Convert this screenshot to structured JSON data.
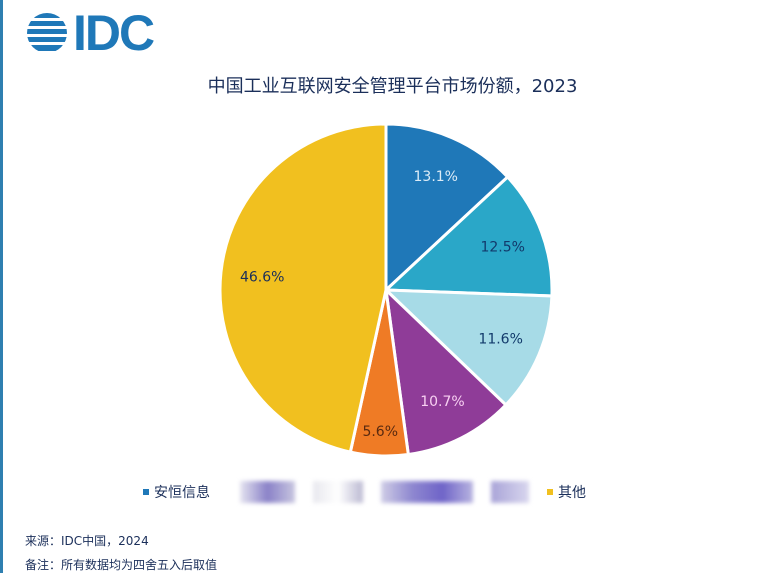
{
  "logo": {
    "text": "IDC"
  },
  "chart_data": {
    "type": "pie",
    "title": "中国工业互联网安全管理平台市场份额，2023",
    "start": "top",
    "direction": "clockwise",
    "slices": [
      {
        "name": "安恒信息",
        "value": 13.1,
        "label": "13.1%",
        "color": "#1f78b8",
        "label_color": "#dcecf7"
      },
      {
        "name": "",
        "value": 12.5,
        "label": "12.5%",
        "color": "#2aa7c8",
        "label_color": "#123a6b"
      },
      {
        "name": "",
        "value": 11.6,
        "label": "11.6%",
        "color": "#a7dbe7",
        "label_color": "#123a6b"
      },
      {
        "name": "",
        "value": 10.7,
        "label": "10.7%",
        "color": "#8f3c98",
        "label_color": "#f8d0f2"
      },
      {
        "name": "",
        "value": 5.6,
        "label": "5.6%",
        "color": "#ef7b25",
        "label_color": "#5a2a10"
      },
      {
        "name": "其他",
        "value": 46.6,
        "label": "46.6%",
        "color": "#f1c01f",
        "label_color": "#1b2f5a"
      }
    ],
    "legend": {
      "placement": "bottom",
      "visible_labels": [
        "安恒信息",
        "其他"
      ],
      "redacted_count": 4
    }
  },
  "footer": {
    "source": "来源：IDC中国，2024",
    "note": "备注：所有数据均为四舍五入后取值"
  }
}
